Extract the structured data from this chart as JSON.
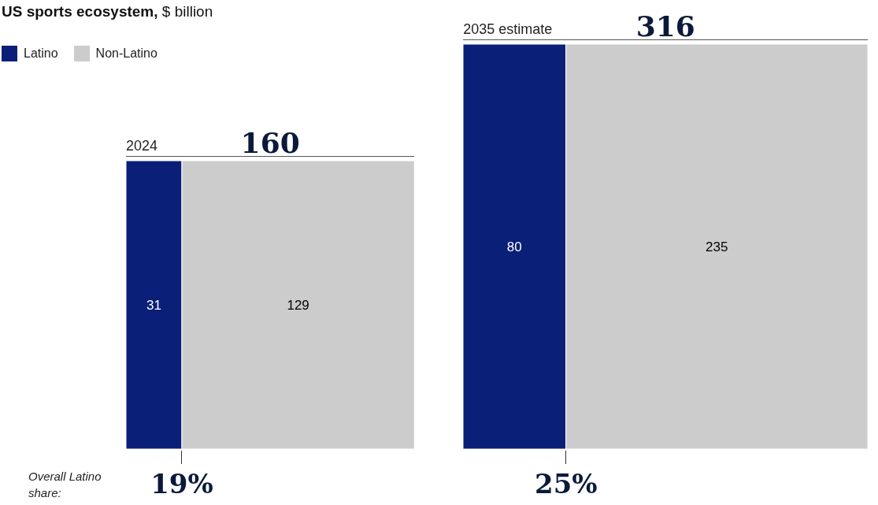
{
  "chart_data": {
    "type": "other",
    "title": "US sports ecosystem,",
    "subtitle": "$ billion",
    "categories": [
      "2024",
      "2035 estimate"
    ],
    "series": [
      {
        "name": "Latino",
        "color": "#0a1f78",
        "values": [
          31,
          80
        ]
      },
      {
        "name": "Non-Latino",
        "color": "#cccccc",
        "values": [
          129,
          235
        ]
      }
    ],
    "data_labels": true,
    "totals": [
      "160",
      "316"
    ],
    "legend": "top left",
    "annotations": [
      "Overall Latino share:",
      "19%",
      "25%"
    ]
  }
}
